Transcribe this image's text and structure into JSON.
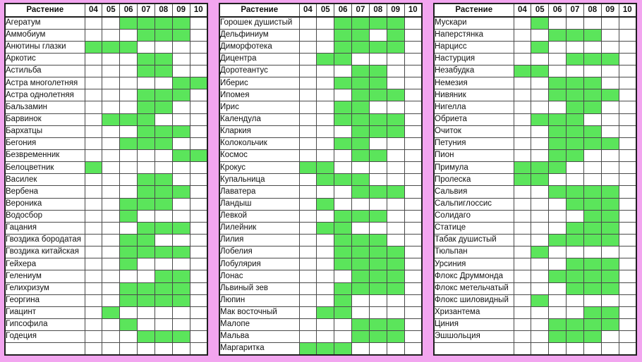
{
  "palette": {
    "page_background": "#f2a5ef",
    "cell_background": "#ffffff",
    "bloom_green": "#5be55b",
    "grid_line": "#4a4a4a",
    "outer_border": "#202020",
    "text": "#111111"
  },
  "chart_data": {
    "type": "table",
    "description_of_encoding": "green cell = month in which the plant blooms",
    "row_header_label": "Растение",
    "columns": [
      "04",
      "05",
      "06",
      "07",
      "08",
      "09",
      "10"
    ],
    "column_month_numbers": [
      4,
      5,
      6,
      7,
      8,
      9,
      10
    ],
    "tables": [
      {
        "rows": [
          {
            "label": "Агератум",
            "bloom": [
              6,
              7,
              8,
              9
            ]
          },
          {
            "label": "Аммобиум",
            "bloom": [
              7,
              8,
              9
            ]
          },
          {
            "label": "Анютины глазки",
            "bloom": [
              4,
              5,
              6
            ]
          },
          {
            "label": "Аркотис",
            "bloom": [
              7,
              8
            ]
          },
          {
            "label": "Астильба",
            "bloom": [
              7,
              8
            ]
          },
          {
            "label": "Астра многолетняя",
            "bloom": [
              9,
              10
            ]
          },
          {
            "label": "Астра однолетняя",
            "bloom": [
              7,
              8,
              9
            ]
          },
          {
            "label": "Бальзамин",
            "bloom": [
              7,
              8
            ]
          },
          {
            "label": "Барвинок",
            "bloom": [
              5,
              6,
              7
            ]
          },
          {
            "label": "Бархатцы",
            "bloom": [
              7,
              8,
              9
            ]
          },
          {
            "label": "Бегония",
            "bloom": [
              6,
              7,
              8
            ]
          },
          {
            "label": "Безвременник",
            "bloom": [
              9,
              10
            ]
          },
          {
            "label": "Белоцветник",
            "bloom": [
              4
            ]
          },
          {
            "label": "Василек",
            "bloom": [
              7,
              8
            ]
          },
          {
            "label": "Вербена",
            "bloom": [
              7,
              8,
              9
            ]
          },
          {
            "label": "Вероника",
            "bloom": [
              6,
              7,
              8
            ]
          },
          {
            "label": "Водосбор",
            "bloom": [
              6
            ]
          },
          {
            "label": "Гацания",
            "bloom": [
              7,
              8,
              9
            ]
          },
          {
            "label": "Гвоздика бородатая",
            "bloom": [
              6,
              7
            ]
          },
          {
            "label": "Гвоздика китайская",
            "bloom": [
              6,
              7,
              8,
              9
            ]
          },
          {
            "label": "Гейхера",
            "bloom": [
              6
            ]
          },
          {
            "label": "Гелениум",
            "bloom": [
              8,
              9
            ]
          },
          {
            "label": "Гелихризум",
            "bloom": [
              6,
              7,
              8,
              9
            ]
          },
          {
            "label": "Георгина",
            "bloom": [
              6,
              7,
              8,
              9
            ]
          },
          {
            "label": "Гиацинт",
            "bloom": [
              5
            ]
          },
          {
            "label": "Гипсофила",
            "bloom": [
              6
            ]
          },
          {
            "label": "Годеция",
            "bloom": [
              7,
              8,
              9
            ]
          },
          {
            "label": "",
            "bloom": []
          }
        ]
      },
      {
        "rows": [
          {
            "label": "Горошек душистый",
            "bloom": [
              6,
              7,
              8,
              9
            ]
          },
          {
            "label": "Дельфиниум",
            "bloom": [
              6,
              7,
              9
            ]
          },
          {
            "label": "Диморфотека",
            "bloom": [
              6,
              7,
              8,
              9
            ]
          },
          {
            "label": "Дицентра",
            "bloom": [
              5,
              6
            ]
          },
          {
            "label": "Доротеантус",
            "bloom": [
              7,
              8
            ]
          },
          {
            "label": "Иберис",
            "bloom": [
              6,
              7,
              8
            ]
          },
          {
            "label": "Ипомея",
            "bloom": [
              7,
              8,
              9
            ]
          },
          {
            "label": "Ирис",
            "bloom": [
              6,
              7
            ]
          },
          {
            "label": "Календула",
            "bloom": [
              6,
              7,
              8,
              9
            ]
          },
          {
            "label": "Кларкия",
            "bloom": [
              7,
              8,
              9
            ]
          },
          {
            "label": "Колокольчик",
            "bloom": [
              6,
              7
            ]
          },
          {
            "label": "Космос",
            "bloom": [
              7,
              8
            ]
          },
          {
            "label": "Крокус",
            "bloom": [
              4,
              5
            ]
          },
          {
            "label": "Купальница",
            "bloom": [
              5,
              6,
              7
            ]
          },
          {
            "label": "Лаватера",
            "bloom": [
              7,
              8,
              9
            ]
          },
          {
            "label": "Ландыш",
            "bloom": [
              5
            ]
          },
          {
            "label": "Левкой",
            "bloom": [
              6,
              7,
              8
            ]
          },
          {
            "label": "Лилейник",
            "bloom": [
              5,
              6
            ]
          },
          {
            "label": "Лилия",
            "bloom": [
              6,
              7,
              8
            ]
          },
          {
            "label": "Лобелия",
            "bloom": [
              6,
              7,
              8,
              9
            ]
          },
          {
            "label": "Лобулярия",
            "bloom": [
              6,
              7,
              8,
              9
            ]
          },
          {
            "label": "Лонас",
            "bloom": [
              7,
              8,
              9
            ]
          },
          {
            "label": "Львиный зев",
            "bloom": [
              6,
              7,
              8,
              9
            ]
          },
          {
            "label": "Люпин",
            "bloom": [
              6
            ]
          },
          {
            "label": "Мак восточный",
            "bloom": [
              5,
              6
            ]
          },
          {
            "label": "Малопе",
            "bloom": [
              7,
              8,
              9
            ]
          },
          {
            "label": "Мальва",
            "bloom": [
              7,
              8,
              9
            ]
          },
          {
            "label": "Маргаритка",
            "bloom": [
              4,
              5,
              6
            ]
          }
        ]
      },
      {
        "rows": [
          {
            "label": "Мускари",
            "bloom": [
              5
            ]
          },
          {
            "label": "Наперстянка",
            "bloom": [
              6,
              7,
              8
            ]
          },
          {
            "label": "Нарцисс",
            "bloom": [
              5
            ]
          },
          {
            "label": "Настурция",
            "bloom": [
              7,
              8,
              9
            ]
          },
          {
            "label": "Незабудка",
            "bloom": [
              4,
              5
            ]
          },
          {
            "label": "Немезия",
            "bloom": [
              6,
              7,
              8
            ]
          },
          {
            "label": "Нивяник",
            "bloom": [
              6,
              7,
              8,
              9
            ]
          },
          {
            "label": "Нигелла",
            "bloom": [
              7,
              8
            ]
          },
          {
            "label": "Обриета",
            "bloom": [
              5,
              6,
              7
            ]
          },
          {
            "label": "Очиток",
            "bloom": [
              6,
              7,
              8
            ]
          },
          {
            "label": "Петуния",
            "bloom": [
              6,
              7,
              8,
              9
            ]
          },
          {
            "label": "Пион",
            "bloom": [
              6,
              7
            ]
          },
          {
            "label": "Примула",
            "bloom": [
              4,
              5,
              6
            ]
          },
          {
            "label": "Пролеска",
            "bloom": [
              4,
              5
            ]
          },
          {
            "label": "Сальвия",
            "bloom": [
              6,
              7,
              8,
              9
            ]
          },
          {
            "label": "Сальпиглоссис",
            "bloom": [
              7,
              8,
              9
            ]
          },
          {
            "label": "Солидаго",
            "bloom": [
              8,
              9
            ]
          },
          {
            "label": "Статице",
            "bloom": [
              7,
              8,
              9
            ]
          },
          {
            "label": "Табак душистый",
            "bloom": [
              6,
              7,
              8,
              9
            ]
          },
          {
            "label": "Тюльпан",
            "bloom": [
              5
            ]
          },
          {
            "label": "Урсиния",
            "bloom": [
              7,
              8,
              9
            ]
          },
          {
            "label": "Флокс Друммонда",
            "bloom": [
              6,
              7,
              8,
              9
            ]
          },
          {
            "label": "Флокс метельчатый",
            "bloom": [
              7,
              8,
              9
            ]
          },
          {
            "label": "Флокс шиловидный",
            "bloom": [
              5
            ]
          },
          {
            "label": "Хризантема",
            "bloom": [
              8,
              9
            ]
          },
          {
            "label": "Циния",
            "bloom": [
              6,
              7,
              8,
              9
            ]
          },
          {
            "label": "Эшшольция",
            "bloom": [
              6,
              7,
              8
            ]
          },
          {
            "label": "",
            "bloom": []
          }
        ]
      }
    ]
  }
}
